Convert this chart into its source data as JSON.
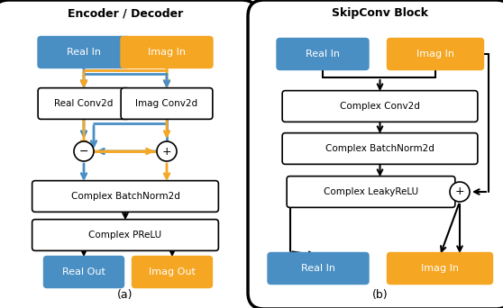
{
  "blue": "#4A8FC4",
  "orange": "#F5A623",
  "black": "#000000",
  "white": "#FFFFFF",
  "title_a": "Encoder / Decoder",
  "title_b": "SkipConv Block",
  "label_a": "(a)",
  "label_b": "(b)",
  "figsize": [
    5.58,
    3.42
  ],
  "dpi": 100
}
